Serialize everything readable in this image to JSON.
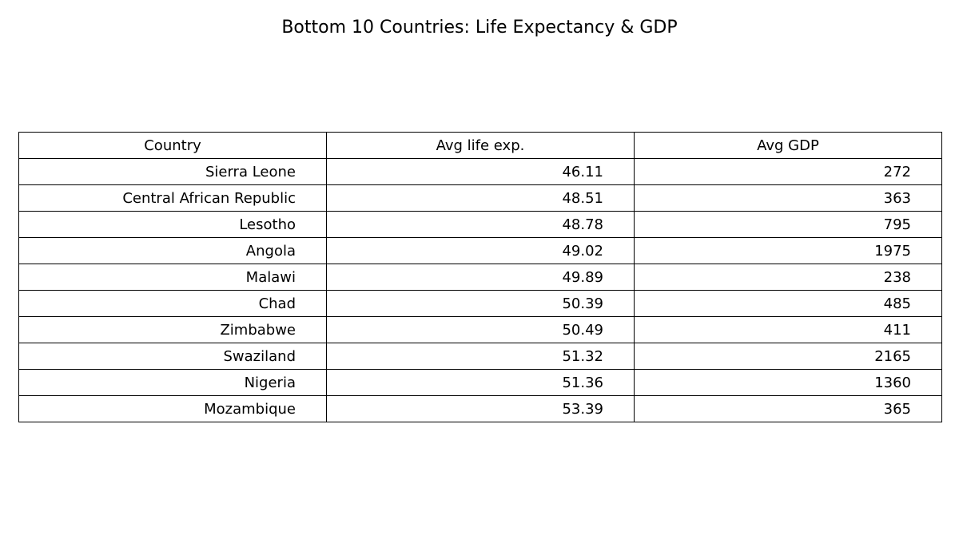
{
  "chart_data": {
    "type": "table",
    "title": "Bottom 10 Countries: Life Expectancy & GDP",
    "columns": [
      "Country",
      "Avg life exp.",
      "Avg GDP"
    ],
    "rows": [
      [
        "Sierra Leone",
        "46.11",
        "272"
      ],
      [
        "Central African Republic",
        "48.51",
        "363"
      ],
      [
        "Lesotho",
        "48.78",
        "795"
      ],
      [
        "Angola",
        "49.02",
        "1975"
      ],
      [
        "Malawi",
        "49.89",
        "238"
      ],
      [
        "Chad",
        "50.39",
        "485"
      ],
      [
        "Zimbabwe",
        "50.49",
        "411"
      ],
      [
        "Swaziland",
        "51.32",
        "2165"
      ],
      [
        "Nigeria",
        "51.36",
        "1360"
      ],
      [
        "Mozambique",
        "53.39",
        "365"
      ]
    ]
  }
}
